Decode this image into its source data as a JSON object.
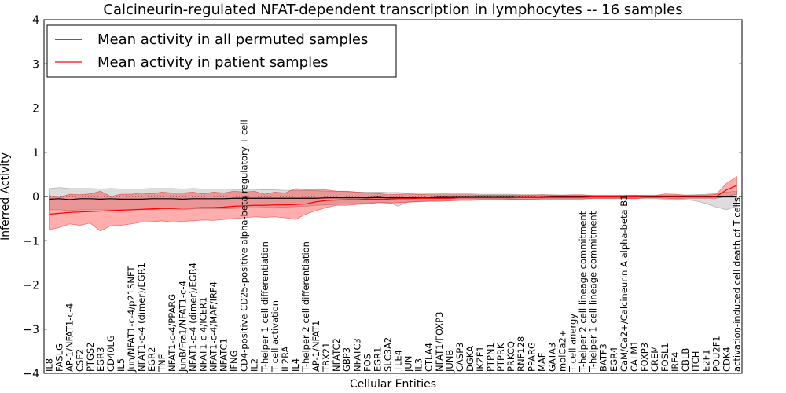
{
  "chart_data": {
    "type": "line",
    "title": "Calcineurin-regulated NFAT-dependent transcription in lymphocytes -- 16 samples",
    "xlabel": "Cellular Entities",
    "ylabel": "Inferred Activity",
    "ylim": [
      -4,
      4
    ],
    "yticks": [
      "−4",
      "−3",
      "−2",
      "−1",
      "0",
      "1",
      "2",
      "3",
      "4"
    ],
    "ytick_values": [
      -4,
      -3,
      -2,
      -1,
      0,
      1,
      2,
      3,
      4
    ],
    "legend_position": "top-left",
    "categories": [
      "IL8",
      "FASLG",
      "AP-1/NFAT1-c-4",
      "CSF2",
      "PTGS2",
      "EGR3",
      "CD40LG",
      "IL5",
      "Jun/NFAT1-c-4/p21SNFT",
      "NFAT1-c-4 (dimer)/EGR1",
      "EGR2",
      "TNF",
      "NFAT1-c-4/PPARG",
      "JunB/Fra1/NFAT1-c-4",
      "NFAT1-c-4 (dimer)/EGR4",
      "NFAT1-c-4/ICER1",
      "NFAT1-c-4/MAF/IRF4",
      "NFATC1",
      "IFNG",
      "CD4-positive CD25-positive alpha-beta regulatory T cell",
      "IL2",
      "T-helper 1 cell differentiation",
      "T cell activation",
      "IL2RA",
      "IL4",
      "T-helper 2 cell differentiation",
      "AP-1/NFAT1",
      "TBX21",
      "NFATC2",
      "GBP3",
      "NFATC3",
      "FOS",
      "EGR1",
      "SLC3A2",
      "TLE4",
      "JUN",
      "IL3",
      "CTLA4",
      "NFAT1/FOXP3",
      "JUNB",
      "CASP3",
      "DGKA",
      "IKZF1",
      "PTPN1",
      "PTPRK",
      "PRKCQ",
      "RNF128",
      "PPARG",
      "MAF",
      "GATA3",
      "molCa2+",
      "T cell anergy",
      "T-helper 2 cell lineage commitment",
      "T-helper 1 cell lineage commitment",
      "BATF3",
      "EGR4",
      "CaM/Ca2+/Calcineurin A alpha-beta B1",
      "CALM1",
      "FOXP3",
      "CREM",
      "FOSL1",
      "IRF4",
      "CBLB",
      "ITCH",
      "E2F1",
      "POU2F1",
      "CDK4",
      "activation-induced cell death of T cells"
    ],
    "series": [
      {
        "name": "Mean activity in all permuted samples",
        "color": "#000000",
        "values": [
          -0.06,
          -0.05,
          -0.07,
          -0.05,
          -0.05,
          -0.06,
          -0.05,
          -0.06,
          -0.06,
          -0.06,
          -0.05,
          -0.05,
          -0.05,
          -0.06,
          -0.05,
          -0.05,
          -0.05,
          -0.05,
          -0.04,
          -0.04,
          -0.04,
          -0.04,
          -0.04,
          -0.04,
          -0.04,
          -0.04,
          -0.04,
          -0.03,
          -0.03,
          -0.03,
          -0.03,
          -0.03,
          -0.02,
          -0.03,
          -0.03,
          -0.03,
          -0.03,
          -0.03,
          -0.02,
          -0.02,
          -0.02,
          -0.02,
          -0.02,
          -0.02,
          -0.02,
          -0.02,
          -0.02,
          -0.02,
          -0.02,
          -0.01,
          -0.01,
          -0.01,
          -0.01,
          -0.01,
          -0.01,
          -0.01,
          -0.01,
          -0.01,
          -0.01,
          -0.01,
          -0.01,
          -0.01,
          -0.01,
          -0.01,
          -0.01,
          -0.01,
          -0.01,
          -0.01
        ],
        "band_upper": [
          0.18,
          0.2,
          0.18,
          0.18,
          0.18,
          0.17,
          0.18,
          0.17,
          0.17,
          0.17,
          0.18,
          0.18,
          0.18,
          0.17,
          0.18,
          0.17,
          0.17,
          0.17,
          0.16,
          0.16,
          0.16,
          0.15,
          0.15,
          0.14,
          0.14,
          0.14,
          0.13,
          0.12,
          0.12,
          0.11,
          0.1,
          0.1,
          0.1,
          0.09,
          0.09,
          0.08,
          0.08,
          0.07,
          0.07,
          0.06,
          0.06,
          0.06,
          0.05,
          0.05,
          0.05,
          0.05,
          0.04,
          0.04,
          0.04,
          0.04,
          0.03,
          0.03,
          0.03,
          0.03,
          0.03,
          0.03,
          0.03,
          0.03,
          0.03,
          0.03,
          0.03,
          0.03,
          0.03,
          0.04,
          0.05,
          0.07,
          0.1,
          0.12
        ],
        "band_lower": [
          -0.3,
          -0.3,
          -0.32,
          -0.3,
          -0.3,
          -0.3,
          -0.3,
          -0.3,
          -0.3,
          -0.3,
          -0.3,
          -0.28,
          -0.28,
          -0.3,
          -0.28,
          -0.28,
          -0.28,
          -0.28,
          -0.27,
          -0.26,
          -0.26,
          -0.25,
          -0.25,
          -0.24,
          -0.23,
          -0.22,
          -0.2,
          -0.19,
          -0.18,
          -0.17,
          -0.16,
          -0.15,
          -0.14,
          -0.13,
          -0.22,
          -0.12,
          -0.11,
          -0.1,
          -0.09,
          -0.09,
          -0.08,
          -0.08,
          -0.07,
          -0.07,
          -0.07,
          -0.06,
          -0.06,
          -0.06,
          -0.05,
          -0.05,
          -0.05,
          -0.05,
          -0.05,
          -0.05,
          -0.05,
          -0.05,
          -0.05,
          -0.05,
          -0.05,
          -0.05,
          -0.06,
          -0.06,
          -0.07,
          -0.1,
          -0.16,
          -0.24,
          -0.3,
          -0.22
        ]
      },
      {
        "name": "Mean activity in patient samples",
        "color": "#ff0000",
        "values": [
          -0.4,
          -0.38,
          -0.36,
          -0.35,
          -0.34,
          -0.33,
          -0.32,
          -0.31,
          -0.3,
          -0.29,
          -0.28,
          -0.27,
          -0.27,
          -0.26,
          -0.26,
          -0.25,
          -0.25,
          -0.24,
          -0.22,
          -0.21,
          -0.2,
          -0.2,
          -0.19,
          -0.19,
          -0.18,
          -0.17,
          -0.12,
          -0.09,
          -0.08,
          -0.07,
          -0.07,
          -0.06,
          -0.06,
          -0.06,
          -0.05,
          -0.05,
          -0.04,
          -0.04,
          -0.04,
          -0.04,
          -0.03,
          -0.03,
          -0.03,
          -0.03,
          -0.03,
          -0.03,
          -0.02,
          -0.02,
          -0.02,
          -0.02,
          -0.02,
          -0.02,
          -0.02,
          -0.01,
          -0.01,
          -0.01,
          -0.01,
          -0.01,
          0.0,
          0.0,
          0.0,
          0.0,
          0.0,
          0.0,
          0.0,
          0.0,
          0.15,
          0.25
        ],
        "band_upper": [
          0.02,
          -0.02,
          0.05,
          0.04,
          0.06,
          0.12,
          0.0,
          0.05,
          0.05,
          0.08,
          0.06,
          0.1,
          0.08,
          0.08,
          0.1,
          0.06,
          0.1,
          0.08,
          0.12,
          0.1,
          0.12,
          0.05,
          0.1,
          0.08,
          0.18,
          0.16,
          0.16,
          0.15,
          0.12,
          0.12,
          0.1,
          0.08,
          0.07,
          0.04,
          0.05,
          0.06,
          0.05,
          0.04,
          0.04,
          0.04,
          0.04,
          0.04,
          0.03,
          0.03,
          0.03,
          0.03,
          0.03,
          0.03,
          0.04,
          0.03,
          0.03,
          0.04,
          0.04,
          0.02,
          0.02,
          0.02,
          0.02,
          0.03,
          0.02,
          0.02,
          0.06,
          0.05,
          0.03,
          0.03,
          0.03,
          0.05,
          0.3,
          0.45
        ],
        "band_lower": [
          -0.75,
          -0.7,
          -0.62,
          -0.65,
          -0.6,
          -0.78,
          -0.66,
          -0.65,
          -0.62,
          -0.58,
          -0.57,
          -0.55,
          -0.58,
          -0.56,
          -0.55,
          -0.53,
          -0.54,
          -0.52,
          -0.5,
          -0.48,
          -0.46,
          -0.47,
          -0.46,
          -0.48,
          -0.52,
          -0.4,
          -0.32,
          -0.25,
          -0.2,
          -0.2,
          -0.18,
          -0.17,
          -0.14,
          -0.15,
          -0.14,
          -0.13,
          -0.12,
          -0.11,
          -0.11,
          -0.1,
          -0.09,
          -0.09,
          -0.08,
          -0.08,
          -0.08,
          -0.07,
          -0.07,
          -0.07,
          -0.06,
          -0.06,
          -0.06,
          -0.06,
          -0.06,
          -0.04,
          -0.04,
          -0.04,
          -0.04,
          -0.05,
          -0.03,
          -0.03,
          -0.04,
          -0.05,
          -0.04,
          -0.04,
          -0.04,
          -0.04,
          0.0,
          0.05
        ]
      }
    ]
  }
}
